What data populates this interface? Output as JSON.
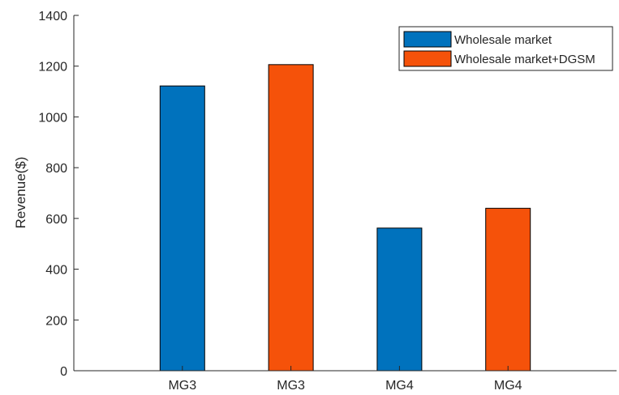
{
  "chart_data": {
    "type": "bar",
    "categories": [
      "MG3",
      "MG3",
      "MG4",
      "MG4"
    ],
    "values": [
      1122,
      1206,
      562,
      640
    ],
    "series_index": [
      0,
      1,
      0,
      1
    ],
    "series": [
      {
        "name": "Wholesale market",
        "color": "#0072BD"
      },
      {
        "name": "Wholesale market+DGSM",
        "color": "#F5520A"
      }
    ],
    "title": "",
    "xlabel": "",
    "ylabel": "Revenue($)",
    "ylim": [
      0,
      1400
    ],
    "yticks": [
      0,
      200,
      400,
      600,
      800,
      1000,
      1200,
      1400
    ],
    "legend_position": "top-right",
    "grid": false
  }
}
